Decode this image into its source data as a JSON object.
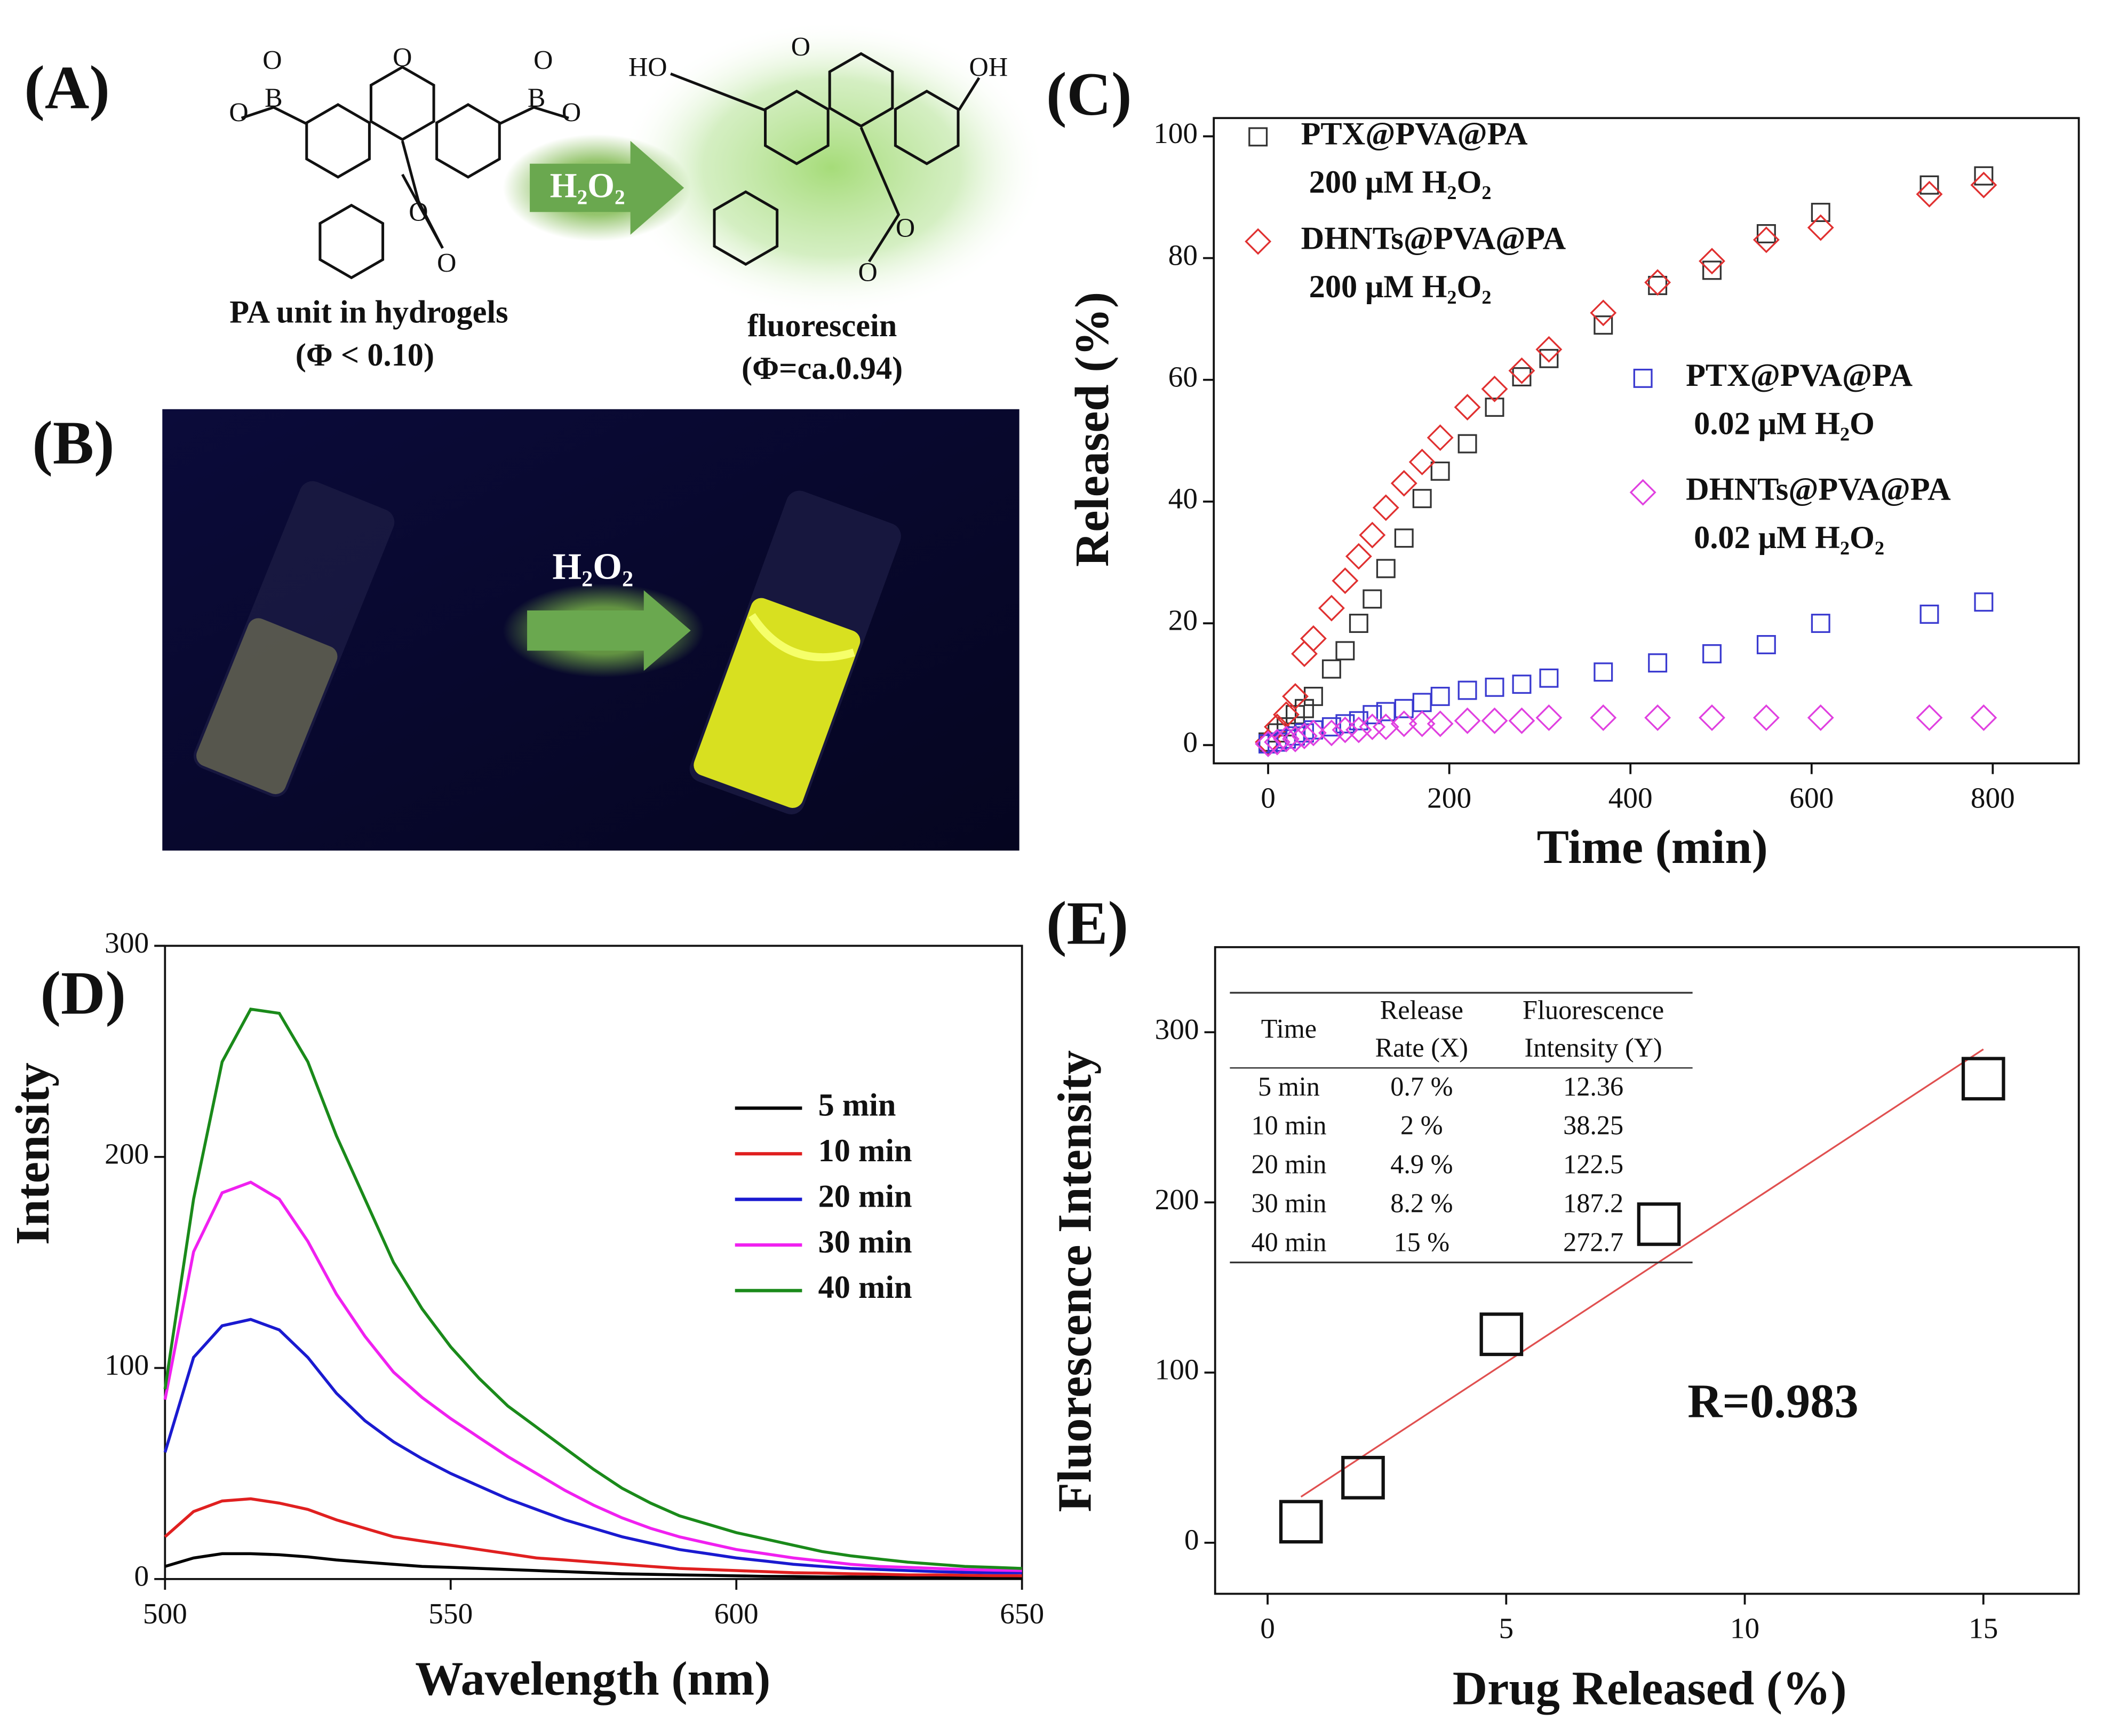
{
  "panel_labels": [
    "(A)",
    "(B)",
    "(C)",
    "(D)",
    "(E)"
  ],
  "panel_a": {
    "left_label": "PA unit in hydrogels",
    "left_quantum": "(Φ < 0.10)",
    "right_label": "fluorescein",
    "right_quantum": "(Φ=ca.0.94)",
    "arrow_label": "H₂O₂",
    "left_atoms": [
      "O",
      "O",
      "B",
      "O",
      "O",
      "B",
      "O",
      "O",
      "O"
    ],
    "right_atoms": [
      "HO",
      "O",
      "OH",
      "O",
      "O"
    ]
  },
  "panel_b": {
    "arrow_label": "H₂O₂"
  },
  "chart_data": [
    {
      "type": "scatter",
      "x_label": "Time (min)",
      "y_label": "Released (%)",
      "xlim": [
        -60,
        895
      ],
      "ylim": [
        -3,
        103
      ],
      "xticks": [
        0,
        200,
        400,
        600,
        800
      ],
      "yticks": [
        0,
        20,
        40,
        60,
        80,
        100
      ],
      "x": [
        0,
        10,
        20,
        30,
        40,
        50,
        70,
        85,
        100,
        115,
        130,
        150,
        170,
        190,
        220,
        250,
        280,
        310,
        370,
        430,
        490,
        550,
        610,
        730,
        790
      ],
      "series": [
        {
          "name": "PTX@PVA@PA",
          "condition": "200 μM H₂O₂",
          "color": "#333333",
          "marker": "square",
          "values": [
            0.5,
            2,
            3,
            5,
            6,
            8,
            12.5,
            15.5,
            20,
            24,
            29,
            34,
            40.5,
            45,
            49.5,
            55.5,
            60.5,
            63.5,
            69,
            75.5,
            78,
            84,
            87.5,
            92,
            93.5
          ]
        },
        {
          "name": "DHNTs@PVA@PA",
          "condition": "200 μM H₂O₂",
          "color": "#e03030",
          "marker": "diamond",
          "values": [
            0.5,
            3,
            5,
            8,
            15,
            17.5,
            22.5,
            27,
            31,
            34.5,
            39,
            43,
            46.5,
            50.5,
            55.5,
            58.5,
            61.5,
            65,
            71,
            76,
            79.5,
            83,
            85,
            90.5,
            92
          ]
        },
        {
          "name": "PTX@PVA@PA",
          "condition": "0.02 μM H₂O",
          "color": "#3a3ad0",
          "marker": "square",
          "values": [
            0.2,
            0.5,
            1,
            1.5,
            2,
            2.5,
            3,
            3.5,
            4,
            5,
            5.5,
            6,
            7,
            8,
            9,
            9.5,
            10,
            11,
            12,
            13.5,
            15,
            16.5,
            20,
            21.5,
            23.5
          ]
        },
        {
          "name": "DHNTs@PVA@PA",
          "condition": "0.02 μM H₂O₂",
          "color": "#e040e0",
          "marker": "diamond",
          "values": [
            0.2,
            0.5,
            1,
            1,
            1.5,
            2,
            2,
            2.5,
            2.5,
            3,
            3,
            3.5,
            3.5,
            3.5,
            4,
            4,
            4,
            4.5,
            4.5,
            4.5,
            4.5,
            4.5,
            4.5,
            4.5,
            4.5
          ]
        }
      ]
    },
    {
      "type": "line",
      "x_label": "Wavelength (nm)",
      "y_label": "Intensity",
      "xlim": [
        500,
        650
      ],
      "ylim": [
        0,
        300
      ],
      "xticks": [
        500,
        550,
        600,
        650
      ],
      "yticks": [
        0,
        100,
        200,
        300
      ],
      "x": [
        500,
        505,
        510,
        515,
        520,
        525,
        530,
        535,
        540,
        545,
        550,
        555,
        560,
        565,
        570,
        575,
        580,
        585,
        590,
        595,
        600,
        605,
        610,
        615,
        620,
        625,
        630,
        635,
        640,
        645,
        650
      ],
      "series": [
        {
          "name": "5  min",
          "color": "#000000",
          "values": [
            6,
            10,
            12,
            12,
            11.5,
            10.5,
            9,
            8,
            7,
            6,
            5.5,
            5,
            4.5,
            4,
            3.5,
            3,
            2.5,
            2.2,
            2,
            1.8,
            1.5,
            1.3,
            1.2,
            1,
            1,
            0.9,
            0.8,
            0.7,
            0.6,
            0.5,
            0.5
          ]
        },
        {
          "name": "10 min",
          "color": "#e02020",
          "values": [
            20,
            32,
            37,
            38,
            36,
            33,
            28,
            24,
            20,
            18,
            16,
            14,
            12,
            10,
            9,
            8,
            7,
            6,
            5,
            4.5,
            4,
            3.5,
            3,
            2.8,
            2.5,
            2.3,
            2,
            2,
            1.8,
            1.6,
            1.5
          ]
        },
        {
          "name": "20 min",
          "color": "#1a1ad0",
          "values": [
            60,
            105,
            120,
            123,
            118,
            105,
            88,
            75,
            65,
            57,
            50,
            44,
            38,
            33,
            28,
            24,
            20,
            17,
            14,
            12,
            10,
            8.5,
            7,
            6,
            5,
            4.5,
            4,
            3.5,
            3.2,
            3,
            3
          ]
        },
        {
          "name": "30 min",
          "color": "#f020f0",
          "values": [
            85,
            155,
            183,
            188,
            180,
            160,
            135,
            115,
            98,
            86,
            76,
            67,
            58,
            50,
            42,
            35,
            29,
            24,
            20,
            17,
            14,
            12,
            10,
            8.5,
            7,
            6,
            5.5,
            5,
            4.5,
            4.2,
            4
          ]
        },
        {
          "name": "40 min",
          "color": "#1a8a1a",
          "values": [
            90,
            180,
            245,
            270,
            268,
            245,
            210,
            180,
            150,
            128,
            110,
            95,
            82,
            72,
            62,
            52,
            43,
            36,
            30,
            26,
            22,
            19,
            16,
            13,
            11,
            9.5,
            8,
            7,
            6,
            5.5,
            5
          ]
        }
      ]
    },
    {
      "type": "scatter",
      "x_label": "Drug Released (%)",
      "y_label": "Fluorescence Intensity",
      "xlim": [
        -1.1,
        17
      ],
      "ylim": [
        -30,
        350
      ],
      "xticks": [
        0,
        5,
        10,
        15
      ],
      "yticks": [
        0,
        100,
        200,
        300
      ],
      "x": [
        0.7,
        2,
        4.9,
        8.2,
        15
      ],
      "series": [
        {
          "color": "#111111",
          "marker": "bigsquare",
          "values": [
            12.36,
            38.25,
            122.5,
            187.2,
            272.7
          ]
        }
      ],
      "fit": {
        "color": "#e05050",
        "x": [
          0.7,
          15
        ],
        "values": [
          27,
          290
        ]
      },
      "annotation": "R=0.983",
      "table": {
        "header": [
          [
            "Time"
          ],
          [
            "Release",
            "Rate (X)"
          ],
          [
            "Fluorescence",
            "Intensity  (Y)"
          ]
        ],
        "rows": [
          [
            "5 min",
            "0.7 %",
            "12.36"
          ],
          [
            "10 min",
            "2 %",
            "38.25"
          ],
          [
            "20 min",
            "4.9 %",
            "122.5"
          ],
          [
            "30 min",
            "8.2 %",
            "187.2"
          ],
          [
            "40 min",
            "15 %",
            "272.7"
          ]
        ]
      }
    }
  ]
}
